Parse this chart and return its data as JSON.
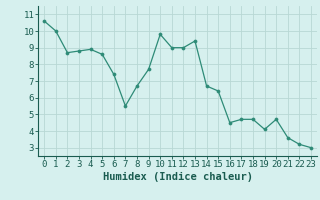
{
  "x": [
    0,
    1,
    2,
    3,
    4,
    5,
    6,
    7,
    8,
    9,
    10,
    11,
    12,
    13,
    14,
    15,
    16,
    17,
    18,
    19,
    20,
    21,
    22,
    23
  ],
  "y": [
    10.6,
    10.0,
    8.7,
    8.8,
    8.9,
    8.6,
    7.4,
    5.5,
    6.7,
    7.7,
    9.8,
    9.0,
    9.0,
    9.4,
    6.7,
    6.4,
    4.5,
    4.7,
    4.7,
    4.1,
    4.7,
    3.6,
    3.2,
    3.0
  ],
  "line_color": "#2e8b77",
  "marker_color": "#2e8b77",
  "bg_color": "#d6f0ee",
  "grid_color": "#b8d8d4",
  "xlabel": "Humidex (Indice chaleur)",
  "xlabel_fontsize": 7.5,
  "xtick_labels": [
    "0",
    "1",
    "2",
    "3",
    "4",
    "5",
    "6",
    "7",
    "8",
    "9",
    "10",
    "11",
    "12",
    "13",
    "14",
    "15",
    "16",
    "17",
    "18",
    "19",
    "20",
    "21",
    "22",
    "23"
  ],
  "ytick_values": [
    3,
    4,
    5,
    6,
    7,
    8,
    9,
    10,
    11
  ],
  "ylim": [
    2.5,
    11.5
  ],
  "xlim": [
    -0.5,
    23.5
  ],
  "tick_fontsize": 6.5,
  "axis_label_color": "#1a5c50",
  "tick_color": "#1a5c50",
  "spine_color": "#1a5c50"
}
